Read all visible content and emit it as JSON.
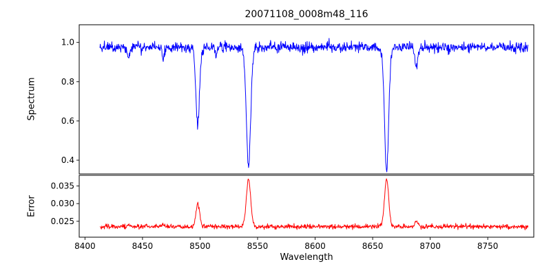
{
  "chart_data": {
    "type": "line",
    "title": "20071108_0008m48_116",
    "xlabel": "Wavelength",
    "xlim": [
      8395,
      8790
    ],
    "xticks": [
      8400,
      8450,
      8500,
      8550,
      8600,
      8650,
      8700,
      8750
    ],
    "xtick_labels": [
      "8400",
      "8450",
      "8500",
      "8550",
      "8600",
      "8650",
      "8700",
      "8750"
    ],
    "x_domain": [
      8413,
      8785
    ],
    "points_per_series": 1150,
    "noise_seed": 20071108,
    "grid": false,
    "legend": "none",
    "panels": [
      {
        "name": "spectrum",
        "ylabel": "Spectrum",
        "color": "#0000ff",
        "ylim": [
          0.33,
          1.09
        ],
        "yticks": [
          0.4,
          0.6,
          0.8,
          1.0
        ],
        "ytick_labels": [
          "0.4",
          "0.6",
          "0.8",
          "1.0"
        ],
        "continuum": 0.975,
        "noise_sigma": 0.013,
        "absorption_lines": [
          {
            "center": 8498.0,
            "depth": 0.39,
            "sigma": 1.6
          },
          {
            "center": 8542.1,
            "depth": 0.6,
            "sigma": 1.9
          },
          {
            "center": 8662.1,
            "depth": 0.63,
            "sigma": 1.8
          },
          {
            "center": 8438.0,
            "depth": 0.055,
            "sigma": 1.2
          },
          {
            "center": 8468.0,
            "depth": 0.05,
            "sigma": 1.2
          },
          {
            "center": 8514.0,
            "depth": 0.04,
            "sigma": 1.1
          },
          {
            "center": 8688.0,
            "depth": 0.11,
            "sigma": 1.3
          }
        ]
      },
      {
        "name": "error",
        "ylabel": "Error",
        "color": "#ff0000",
        "ylim": [
          0.0205,
          0.038
        ],
        "yticks": [
          0.025,
          0.03,
          0.035
        ],
        "ytick_labels": [
          "0.025",
          "0.030",
          "0.035"
        ],
        "baseline": 0.0235,
        "noise_sigma": 0.00033,
        "emission_peaks": [
          {
            "center": 8498.0,
            "amp": 0.0065,
            "sigma": 1.6
          },
          {
            "center": 8542.1,
            "amp": 0.0133,
            "sigma": 1.9
          },
          {
            "center": 8662.1,
            "amp": 0.0134,
            "sigma": 1.8
          },
          {
            "center": 8688.0,
            "amp": 0.0018,
            "sigma": 1.2
          },
          {
            "center": 8468.0,
            "amp": 0.0007,
            "sigma": 1.2
          },
          {
            "center": 8438.0,
            "amp": 0.0006,
            "sigma": 1.2
          }
        ]
      }
    ]
  }
}
